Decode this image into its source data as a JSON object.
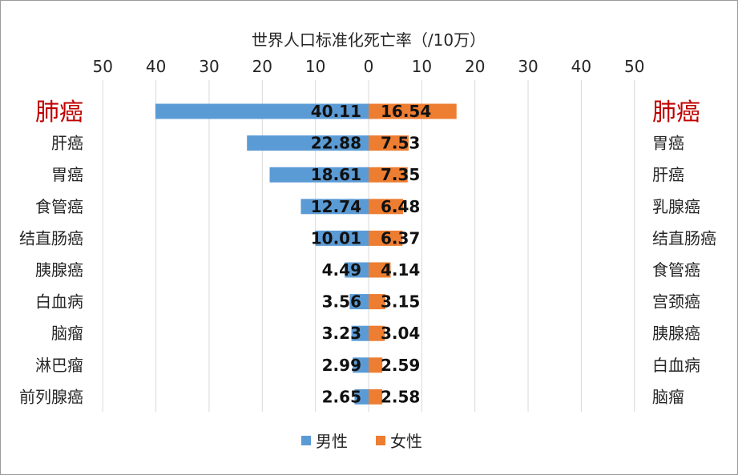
{
  "chart_data": {
    "type": "bar",
    "orientation": "horizontal-diverging",
    "title": "世界人口标准化死亡率（/10万）",
    "xlim": [
      -50,
      50
    ],
    "x_ticks": [
      "50",
      "40",
      "30",
      "20",
      "10",
      "0",
      "10",
      "20",
      "30",
      "40",
      "50"
    ],
    "grid": true,
    "legend_position": "bottom",
    "series": [
      {
        "name": "男性",
        "color": "#5b9bd5",
        "categories": [
          "肺癌",
          "肝癌",
          "胃癌",
          "食管癌",
          "结直肠癌",
          "胰腺癌",
          "白血病",
          "脑瘤",
          "淋巴瘤",
          "前列腺癌"
        ],
        "values": [
          40.11,
          22.88,
          18.61,
          12.74,
          10.01,
          4.49,
          3.56,
          3.23,
          2.99,
          2.65
        ],
        "labels": [
          "40.11",
          "22.88",
          "18.61",
          "12.74",
          "10.01",
          "4.49",
          "3.56",
          "3.23",
          "2.99",
          "2.65"
        ]
      },
      {
        "name": "女性",
        "color": "#ed7d31",
        "categories": [
          "肺癌",
          "胃癌",
          "肝癌",
          "乳腺癌",
          "结直肠癌",
          "食管癌",
          "宫颈癌",
          "胰腺癌",
          "白血病",
          "脑瘤"
        ],
        "values": [
          16.54,
          7.53,
          7.35,
          6.48,
          6.37,
          4.14,
          3.15,
          3.04,
          2.59,
          2.58
        ],
        "labels": [
          "16.54",
          "7.53",
          "7.35",
          "6.48",
          "6.37",
          "4.14",
          "3.15",
          "3.04",
          "2.59",
          "2.58"
        ]
      }
    ],
    "highlight_categories": [
      "肺癌"
    ]
  }
}
